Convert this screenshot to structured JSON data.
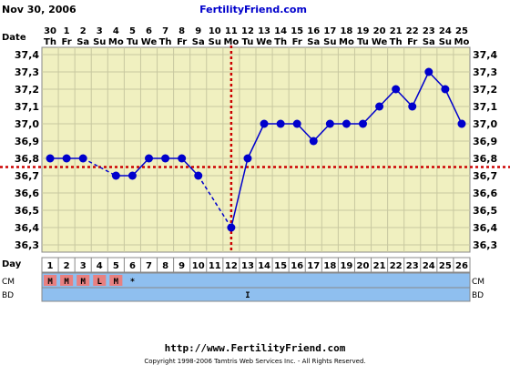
{
  "header": {
    "date": "Nov 30, 2006",
    "site": "FertilityFriend.com"
  },
  "row_labels": {
    "date": "Date",
    "day": "Day",
    "cm": "CM",
    "bd": "BD"
  },
  "footer": {
    "url": "http://www.FertilityFriend.com",
    "copyright": "Copyright 1998-2006 Tamtris Web Services Inc. - All Rights Reserved."
  },
  "colors": {
    "plot_bg": "#f0f0c0",
    "grid": "#c8c8a0",
    "line": "#0000cc",
    "coverline": "#cc0000",
    "row_blue": "#8fbfef",
    "cm_cell": "#e88080",
    "title_blue": "#0000cc"
  },
  "chart_data": {
    "type": "line",
    "ylim": [
      36.3,
      37.4
    ],
    "y_ticks": [
      "36,3",
      "36,4",
      "36,5",
      "36,6",
      "36,7",
      "36,8",
      "36,9",
      "37,0",
      "37,1",
      "37,2",
      "37,3",
      "37,4"
    ],
    "dates": [
      "30",
      "1",
      "2",
      "3",
      "4",
      "5",
      "6",
      "7",
      "8",
      "9",
      "10",
      "11",
      "12",
      "13",
      "14",
      "15",
      "16",
      "17",
      "18",
      "19",
      "20",
      "21",
      "22",
      "23",
      "24",
      "25"
    ],
    "weekdays": [
      "Th",
      "Fr",
      "Sa",
      "Su",
      "Mo",
      "Tu",
      "We",
      "Th",
      "Fr",
      "Sa",
      "Su",
      "Mo",
      "Tu",
      "We",
      "Th",
      "Fr",
      "Sa",
      "Su",
      "Mo",
      "Tu",
      "We",
      "Th",
      "Fr",
      "Sa",
      "Su",
      "Mo"
    ],
    "cycle_days": [
      "1",
      "2",
      "3",
      "4",
      "5",
      "6",
      "7",
      "8",
      "9",
      "10",
      "11",
      "12",
      "13",
      "14",
      "15",
      "16",
      "17",
      "18",
      "19",
      "20",
      "21",
      "22",
      "23",
      "24",
      "25",
      "26"
    ],
    "temperatures": [
      36.8,
      36.8,
      36.8,
      null,
      36.7,
      36.7,
      36.8,
      36.8,
      36.8,
      36.7,
      null,
      36.4,
      36.8,
      37.0,
      37.0,
      37.0,
      36.9,
      37.0,
      37.0,
      37.0,
      37.1,
      37.2,
      37.1,
      37.3,
      37.2,
      37.0
    ],
    "coverline": 36.75,
    "ovulation_day": 12,
    "cm": [
      "M",
      "M",
      "M",
      "L",
      "M",
      "*",
      "",
      "",
      "",
      "",
      "",
      "",
      "",
      "",
      "",
      "",
      "",
      "",
      "",
      "",
      "",
      "",
      "",
      "",
      "",
      ""
    ],
    "bd": [
      "",
      "",
      "",
      "",
      "",
      "",
      "",
      "",
      "",
      "",
      "",
      "",
      "I",
      "",
      "",
      "",
      "",
      "",
      "",
      "",
      "",
      "",
      "",
      "",
      "",
      ""
    ]
  }
}
